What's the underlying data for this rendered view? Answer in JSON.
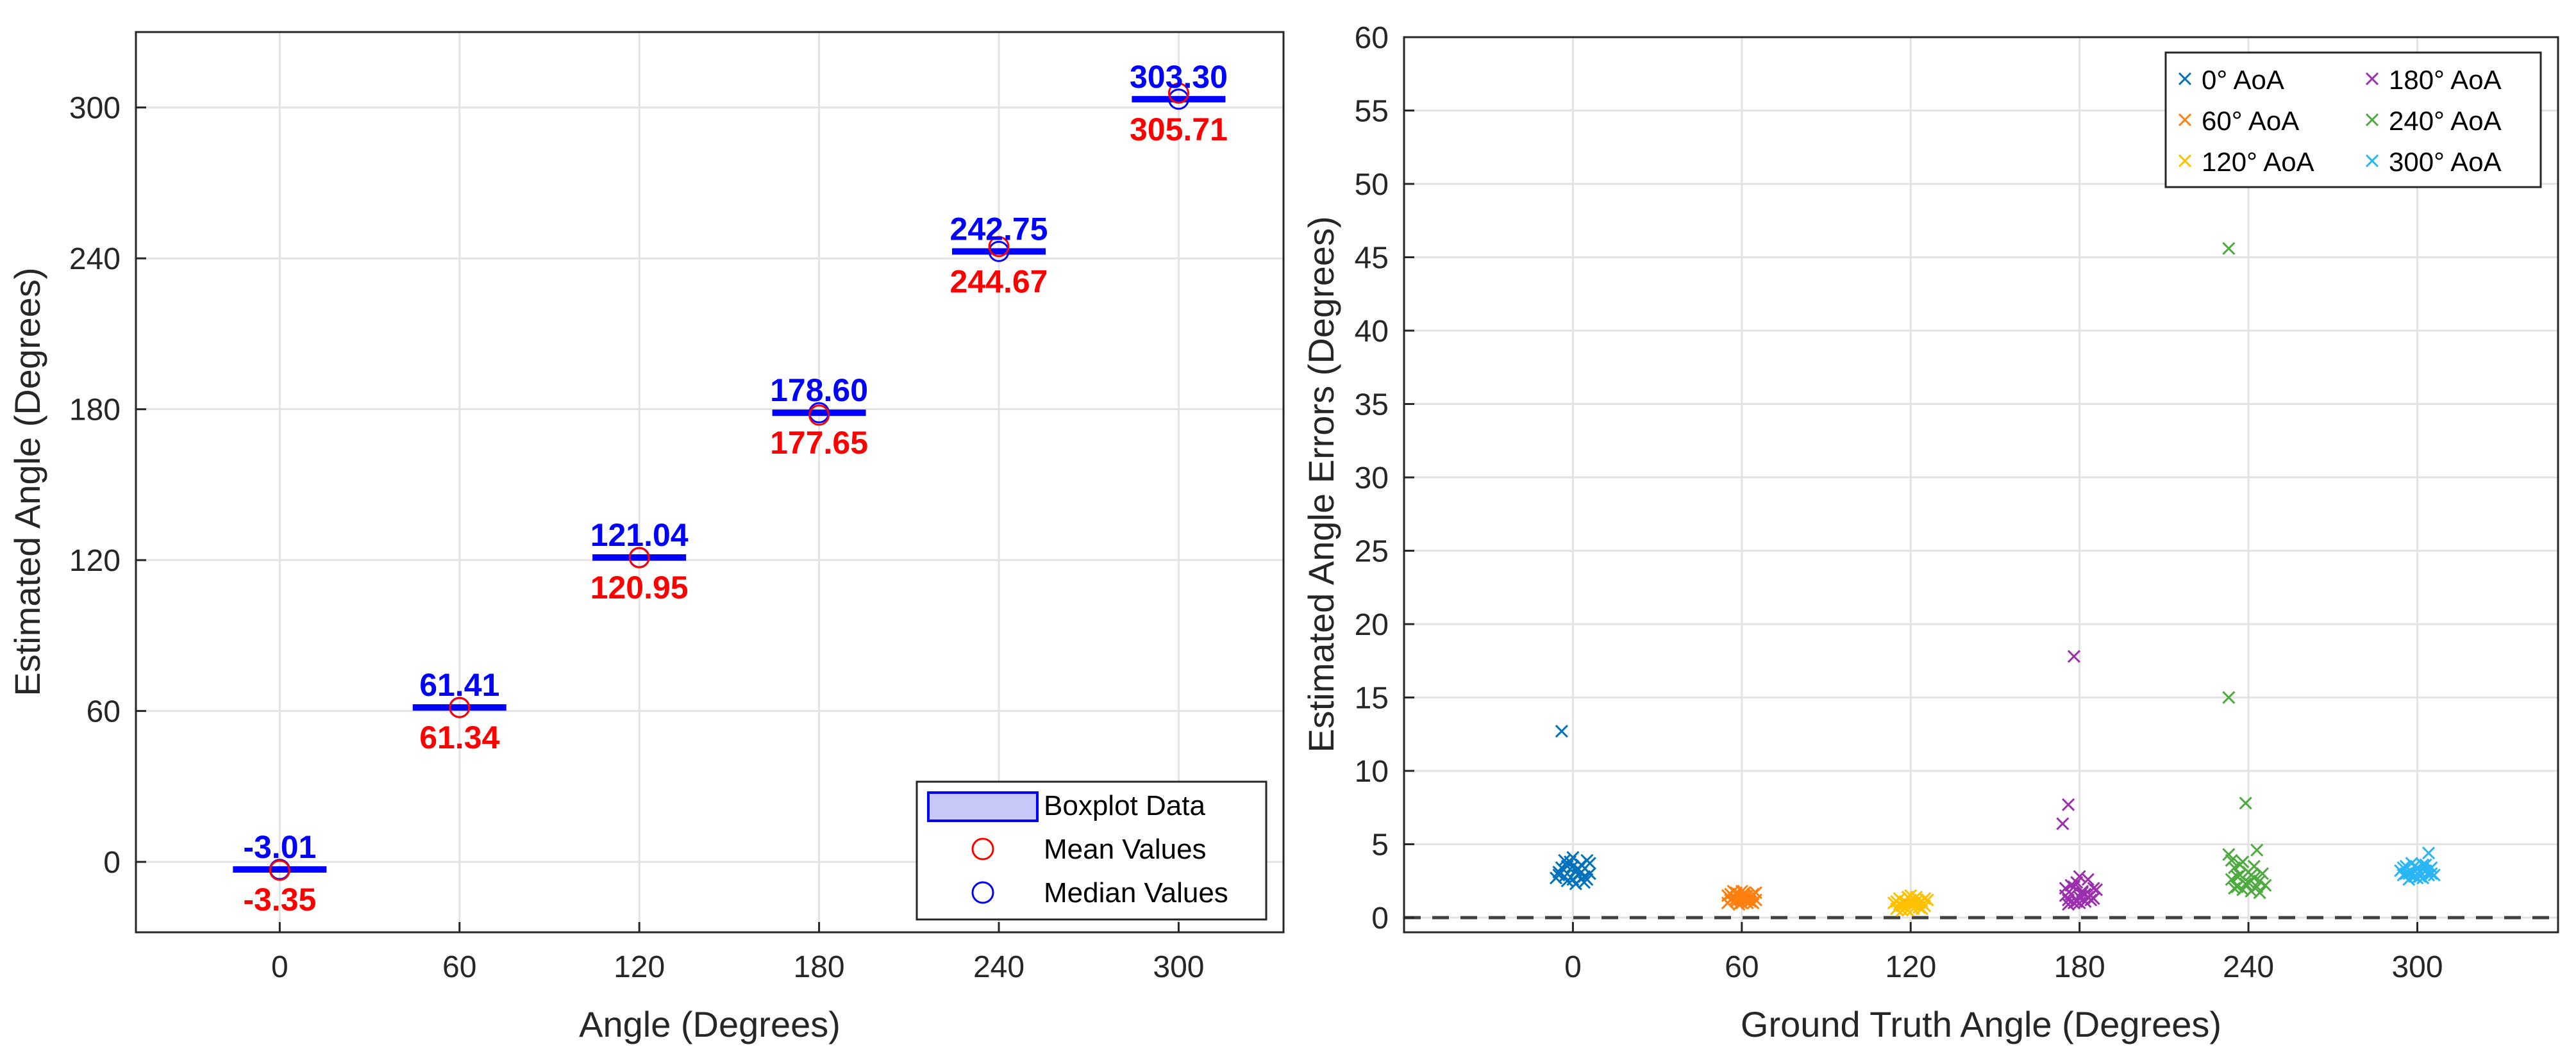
{
  "chart_data": [
    {
      "type": "boxplot",
      "xlabel": "Angle (Degrees)",
      "ylabel": "Estimated Angle (Degrees)",
      "xlim": [
        -48,
        335
      ],
      "ylim": [
        -28,
        330
      ],
      "xticks": [
        0,
        60,
        120,
        180,
        240,
        300
      ],
      "yticks": [
        0,
        60,
        120,
        180,
        240,
        300
      ],
      "grid": true,
      "categories": [
        0,
        60,
        120,
        180,
        240,
        300
      ],
      "median_values": [
        -3.01,
        61.41,
        121.04,
        178.6,
        242.75,
        303.3
      ],
      "mean_values": [
        -3.35,
        61.34,
        120.95,
        177.65,
        244.67,
        305.71
      ],
      "median_labels": [
        "-3.01",
        "61.41",
        "121.04",
        "178.60",
        "242.75",
        "303.30"
      ],
      "mean_labels": [
        "-3.35",
        "61.34",
        "120.95",
        "177.65",
        "244.67",
        "305.71"
      ],
      "legend": {
        "placement": "bottom-right",
        "entries": [
          "Boxplot Data",
          "Mean Values",
          "Median Values"
        ]
      },
      "colors": {
        "median": "#0000ff",
        "mean": "#ff0000",
        "box_fill": "#c8c8f8"
      }
    },
    {
      "type": "scatter",
      "xlabel": "Ground Truth Angle (Degrees)",
      "ylabel": "Estimated Angle Errors (Degrees)",
      "xlim": [
        -60,
        350
      ],
      "ylim": [
        -1,
        60
      ],
      "xticks": [
        0,
        60,
        120,
        180,
        240,
        300
      ],
      "yticks": [
        0,
        5,
        10,
        15,
        20,
        25,
        30,
        35,
        40,
        45,
        50,
        55,
        60
      ],
      "grid": true,
      "reference_line": {
        "y": 0,
        "style": "dashed"
      },
      "legend": {
        "placement": "top-right",
        "columns": 2
      },
      "series": [
        {
          "name": "0°      AoA",
          "color": "#0072bd",
          "points": [
            [
              -4,
              12.7
            ],
            [
              -5,
              3.1
            ],
            [
              -3,
              2.8
            ],
            [
              -2,
              3.5
            ],
            [
              -1,
              3.8
            ],
            [
              0,
              2.6
            ],
            [
              1,
              3.2
            ],
            [
              2,
              2.9
            ],
            [
              3,
              3.6
            ],
            [
              4,
              2.4
            ],
            [
              5,
              3.9
            ],
            [
              6,
              3.0
            ],
            [
              -6,
              2.7
            ],
            [
              -4,
              3.4
            ],
            [
              -2,
              2.5
            ],
            [
              0,
              4.1
            ],
            [
              2,
              3.3
            ],
            [
              4,
              2.8
            ],
            [
              6,
              3.7
            ],
            [
              1,
              2.3
            ],
            [
              -3,
              3.9
            ],
            [
              3,
              3.1
            ],
            [
              5,
              2.6
            ],
            [
              -5,
              2.9
            ],
            [
              0,
              3.5
            ]
          ]
        },
        {
          "name": "60°   AoA",
          "color": "#ff7f0e",
          "points": [
            [
              55,
              1.5
            ],
            [
              56,
              1.2
            ],
            [
              57,
              1.8
            ],
            [
              58,
              1.1
            ],
            [
              59,
              1.6
            ],
            [
              60,
              1.3
            ],
            [
              61,
              1.7
            ],
            [
              62,
              1.0
            ],
            [
              63,
              1.4
            ],
            [
              64,
              1.6
            ],
            [
              65,
              1.2
            ],
            [
              55,
              1.0
            ],
            [
              57,
              1.4
            ],
            [
              59,
              0.9
            ],
            [
              61,
              1.5
            ],
            [
              63,
              1.1
            ],
            [
              65,
              1.7
            ],
            [
              58,
              1.3
            ],
            [
              60,
              1.8
            ],
            [
              62,
              1.2
            ],
            [
              64,
              1.0
            ],
            [
              56,
              1.6
            ],
            [
              60,
              1.0
            ],
            [
              62,
              1.5
            ],
            [
              58,
              1.7
            ]
          ]
        },
        {
          "name": "120° AoA",
          "color": "#ffc000",
          "points": [
            [
              114,
              1.0
            ],
            [
              115,
              0.6
            ],
            [
              116,
              1.3
            ],
            [
              117,
              0.8
            ],
            [
              118,
              1.1
            ],
            [
              119,
              0.5
            ],
            [
              120,
              1.2
            ],
            [
              121,
              0.9
            ],
            [
              122,
              1.4
            ],
            [
              123,
              0.7
            ],
            [
              124,
              1.1
            ],
            [
              125,
              0.8
            ],
            [
              126,
              1.2
            ],
            [
              115,
              1.1
            ],
            [
              117,
              0.5
            ],
            [
              119,
              1.4
            ],
            [
              121,
              0.6
            ],
            [
              123,
              1.0
            ],
            [
              125,
              1.3
            ],
            [
              118,
              0.7
            ],
            [
              120,
              0.9
            ],
            [
              122,
              1.1
            ],
            [
              124,
              0.6
            ],
            [
              116,
              0.9
            ],
            [
              120,
              1.5
            ]
          ]
        },
        {
          "name": "180° AoA",
          "color": "#9b2fae",
          "points": [
            [
              174,
              6.4
            ],
            [
              176,
              7.7
            ],
            [
              178,
              17.8
            ],
            [
              175,
              2.0
            ],
            [
              176,
              1.2
            ],
            [
              177,
              1.6
            ],
            [
              178,
              1.0
            ],
            [
              179,
              2.4
            ],
            [
              180,
              1.4
            ],
            [
              181,
              1.8
            ],
            [
              182,
              1.1
            ],
            [
              183,
              2.6
            ],
            [
              184,
              1.5
            ],
            [
              185,
              1.3
            ],
            [
              186,
              1.9
            ],
            [
              175,
              1.5
            ],
            [
              177,
              2.2
            ],
            [
              179,
              1.1
            ],
            [
              181,
              1.7
            ],
            [
              183,
              1.4
            ],
            [
              185,
              2.0
            ],
            [
              176,
              0.9
            ],
            [
              180,
              2.8
            ],
            [
              182,
              1.6
            ],
            [
              184,
              1.2
            ],
            [
              178,
              2.1
            ],
            [
              180,
              1.0
            ]
          ]
        },
        {
          "name": "240° AoA",
          "color": "#4daa3e",
          "points": [
            [
              233,
              45.6
            ],
            [
              233,
              15.0
            ],
            [
              239,
              7.8
            ],
            [
              233,
              4.3
            ],
            [
              234,
              2.6
            ],
            [
              235,
              3.4
            ],
            [
              236,
              2.1
            ],
            [
              237,
              2.9
            ],
            [
              238,
              3.8
            ],
            [
              239,
              2.3
            ],
            [
              240,
              3.1
            ],
            [
              241,
              1.8
            ],
            [
              242,
              2.7
            ],
            [
              243,
              4.6
            ],
            [
              244,
              2.5
            ],
            [
              245,
              3.0
            ],
            [
              246,
              2.2
            ],
            [
              234,
              3.9
            ],
            [
              236,
              2.8
            ],
            [
              238,
              1.9
            ],
            [
              240,
              2.4
            ],
            [
              242,
              3.5
            ],
            [
              244,
              1.7
            ],
            [
              235,
              2.0
            ],
            [
              237,
              3.6
            ],
            [
              241,
              2.9
            ],
            [
              243,
              2.1
            ]
          ]
        },
        {
          "name": "300° AoA",
          "color": "#29b6f6",
          "points": [
            [
              294,
              3.2
            ],
            [
              295,
              2.9
            ],
            [
              296,
              3.5
            ],
            [
              297,
              3.0
            ],
            [
              298,
              3.7
            ],
            [
              299,
              2.8
            ],
            [
              300,
              3.3
            ],
            [
              301,
              3.1
            ],
            [
              302,
              2.7
            ],
            [
              303,
              3.6
            ],
            [
              304,
              4.4
            ],
            [
              305,
              3.0
            ],
            [
              306,
              2.9
            ],
            [
              295,
              3.4
            ],
            [
              297,
              2.6
            ],
            [
              299,
              3.5
            ],
            [
              301,
              2.8
            ],
            [
              303,
              3.2
            ],
            [
              305,
              3.4
            ],
            [
              296,
              3.0
            ],
            [
              298,
              3.1
            ],
            [
              300,
              2.7
            ],
            [
              302,
              3.6
            ],
            [
              304,
              2.9
            ],
            [
              300,
              3.4
            ]
          ]
        }
      ]
    }
  ]
}
